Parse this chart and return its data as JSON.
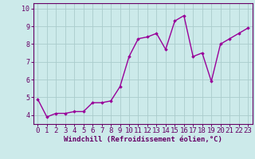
{
  "x": [
    0,
    1,
    2,
    3,
    4,
    5,
    6,
    7,
    8,
    9,
    10,
    11,
    12,
    13,
    14,
    15,
    16,
    17,
    18,
    19,
    20,
    21,
    22,
    23
  ],
  "y": [
    4.9,
    3.9,
    4.1,
    4.1,
    4.2,
    4.2,
    4.7,
    4.7,
    4.8,
    5.6,
    7.3,
    8.3,
    8.4,
    8.6,
    7.7,
    9.3,
    9.6,
    7.3,
    7.5,
    5.9,
    8.0,
    8.3,
    8.6,
    8.9
  ],
  "line_color": "#990099",
  "marker": "D",
  "marker_size": 1.8,
  "bg_color": "#cceaea",
  "grid_color": "#aacccc",
  "xlabel": "Windchill (Refroidissement éolien,°C)",
  "ylim": [
    3.5,
    10.3
  ],
  "xlim": [
    -0.5,
    23.5
  ],
  "yticks": [
    4,
    5,
    6,
    7,
    8,
    9,
    10
  ],
  "xticks": [
    0,
    1,
    2,
    3,
    4,
    5,
    6,
    7,
    8,
    9,
    10,
    11,
    12,
    13,
    14,
    15,
    16,
    17,
    18,
    19,
    20,
    21,
    22,
    23
  ],
  "xlabel_fontsize": 6.5,
  "tick_fontsize": 6.0,
  "line_width": 1.0,
  "spine_color": "#660066",
  "tick_color": "#660066",
  "label_color": "#660066"
}
